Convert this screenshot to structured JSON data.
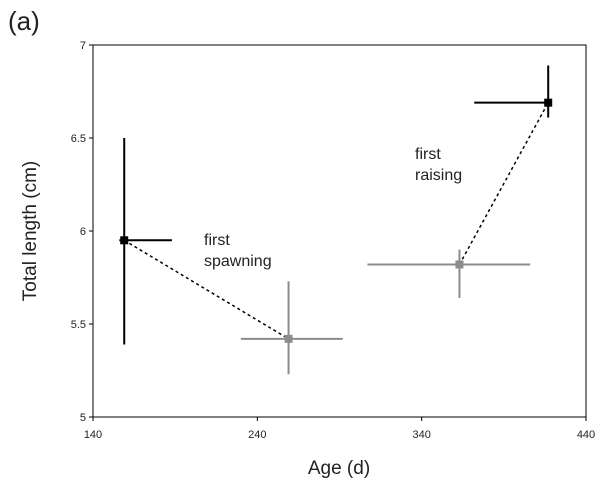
{
  "chart_data": {
    "type": "errorbar",
    "panel_label": "(a)",
    "xlabel": "Age (d)",
    "ylabel": "Total length (cm)",
    "xlim": [
      140,
      440
    ],
    "xticks": [
      140,
      240,
      340,
      440
    ],
    "ylim": [
      5,
      7
    ],
    "yticks": [
      5,
      5.5,
      6,
      6.5,
      7
    ],
    "connector_style": "dotted",
    "series": [
      {
        "colors": [
          "#000000",
          "#8c8c8c"
        ],
        "x": [
          159,
          259
        ],
        "values": [
          5.95,
          5.42
        ],
        "xerr_minus": [
          3,
          29
        ],
        "xerr_plus": [
          29,
          33
        ],
        "yerr_minus": [
          0.56,
          0.19
        ],
        "yerr_plus": [
          0.55,
          0.31
        ]
      },
      {
        "colors": [
          "#8c8c8c",
          "#000000"
        ],
        "x": [
          363,
          417
        ],
        "values": [
          5.82,
          6.69
        ],
        "xerr_minus": [
          56,
          45
        ],
        "xerr_plus": [
          43,
          0
        ],
        "yerr_minus": [
          0.18,
          0.08
        ],
        "yerr_plus": [
          0.08,
          0.2
        ]
      }
    ],
    "annotations": [
      {
        "lines": [
          "first",
          "spawning"
        ]
      },
      {
        "lines": [
          "first",
          "raising"
        ]
      }
    ]
  }
}
